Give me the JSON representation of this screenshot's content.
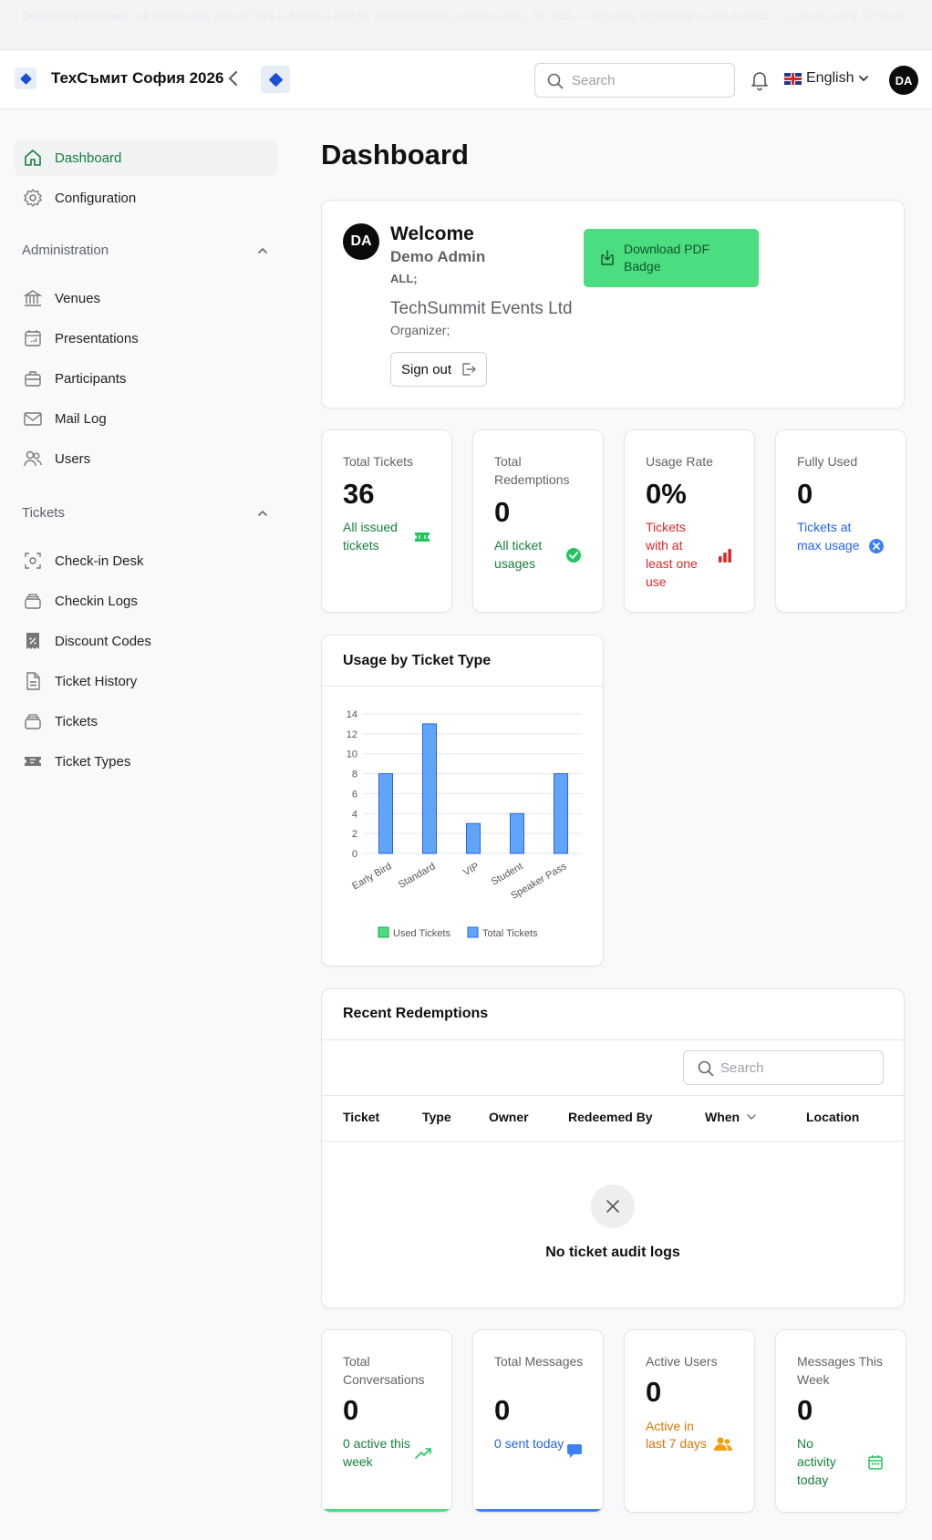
{
  "banner": {
    "strong": "Demo environment:",
    "text": " all information shown here is fictional and for demonstration purposes only. All data — including registrations and profiles — is reset every 12 hours."
  },
  "header": {
    "app_title": "ТехСъмит София 2026",
    "search_placeholder": "Search",
    "language": "English",
    "avatar_initials": "DA"
  },
  "sidebar": {
    "top_items": [
      {
        "label": "Dashboard",
        "icon": "home-icon",
        "active": true
      },
      {
        "label": "Configuration",
        "icon": "gear-icon"
      }
    ],
    "sections": [
      {
        "title": "Administration",
        "items": [
          {
            "label": "Venues",
            "icon": "building-icon"
          },
          {
            "label": "Presentations",
            "icon": "calendar-icon"
          },
          {
            "label": "Participants",
            "icon": "briefcase-icon"
          },
          {
            "label": "Mail Log",
            "icon": "mail-icon"
          },
          {
            "label": "Users",
            "icon": "users-icon"
          }
        ]
      },
      {
        "title": "Tickets",
        "items": [
          {
            "label": "Check-in Desk",
            "icon": "scan-icon"
          },
          {
            "label": "Checkin Logs",
            "icon": "stack-icon"
          },
          {
            "label": "Discount Codes",
            "icon": "discount-icon"
          },
          {
            "label": "Ticket History",
            "icon": "document-icon"
          },
          {
            "label": "Tickets",
            "icon": "stack-icon"
          },
          {
            "label": "Ticket Types",
            "icon": "ticket-icon"
          }
        ]
      }
    ]
  },
  "page_title": "Dashboard",
  "welcome": {
    "avatar_initials": "DA",
    "title": "Welcome",
    "name": "Demo Admin",
    "role": "ALL;",
    "organization": "TechSummit Events Ltd",
    "org_role": "Organizer;",
    "sign_out": "Sign out",
    "download_badge": "Download PDF Badge"
  },
  "stats": [
    {
      "label": "Total Tickets",
      "value": "36",
      "sub": "All issued tickets",
      "color": "#15803d",
      "icon": "ticket-icon"
    },
    {
      "label": "Total Redemptions",
      "value": "0",
      "sub": "All ticket usages",
      "color": "#15803d",
      "icon": "check-circle-icon"
    },
    {
      "label": "Usage Rate",
      "value": "0%",
      "sub": "Tickets with at least one use",
      "color": "#dc2626",
      "icon": "bar-chart-icon"
    },
    {
      "label": "Fully Used",
      "value": "0",
      "sub": "Tickets at max usage",
      "color": "#2563eb",
      "icon": "x-circle-icon"
    }
  ],
  "chart_card": {
    "title": "Usage by Ticket Type"
  },
  "chart_data": {
    "type": "bar",
    "categories": [
      "Early Bird",
      "Standard",
      "VIP",
      "Student",
      "Speaker Pass"
    ],
    "series": [
      {
        "name": "Used Tickets",
        "values": [
          0,
          0,
          0,
          0,
          0
        ],
        "color": "#4ade80"
      },
      {
        "name": "Total Tickets",
        "values": [
          8,
          13,
          3,
          4,
          8
        ],
        "color": "#60a5fa"
      }
    ],
    "y_ticks": [
      "0",
      "2",
      "4",
      "6",
      "8",
      "10",
      "12",
      "14"
    ],
    "ylim": [
      0,
      14
    ],
    "grid": true,
    "legend": "bottom"
  },
  "redemptions": {
    "title": "Recent Redemptions",
    "search_placeholder": "Search",
    "columns": [
      "Ticket",
      "Type",
      "Owner",
      "Redeemed By",
      "When",
      "Location"
    ],
    "empty_text": "No ticket audit logs"
  },
  "stats2": [
    {
      "label": "Total Conversations",
      "value": "0",
      "sub": "0 active this week",
      "color": "#15803d",
      "bar": "#4ade80",
      "icon": "trending-up-icon"
    },
    {
      "label": "Total Messages",
      "value": "0",
      "sub": "0 sent today",
      "color": "#2563eb",
      "bar": "#3b82f6",
      "icon": "chat-icon"
    },
    {
      "label": "Active Users",
      "value": "0",
      "sub": "Active in last 7 days",
      "color": "#d97706",
      "bar": "",
      "icon": "users-icon"
    },
    {
      "label": "Messages This Week",
      "value": "0",
      "sub": "No activity today",
      "color": "#15803d",
      "bar": "",
      "icon": "calendar-icon"
    }
  ]
}
